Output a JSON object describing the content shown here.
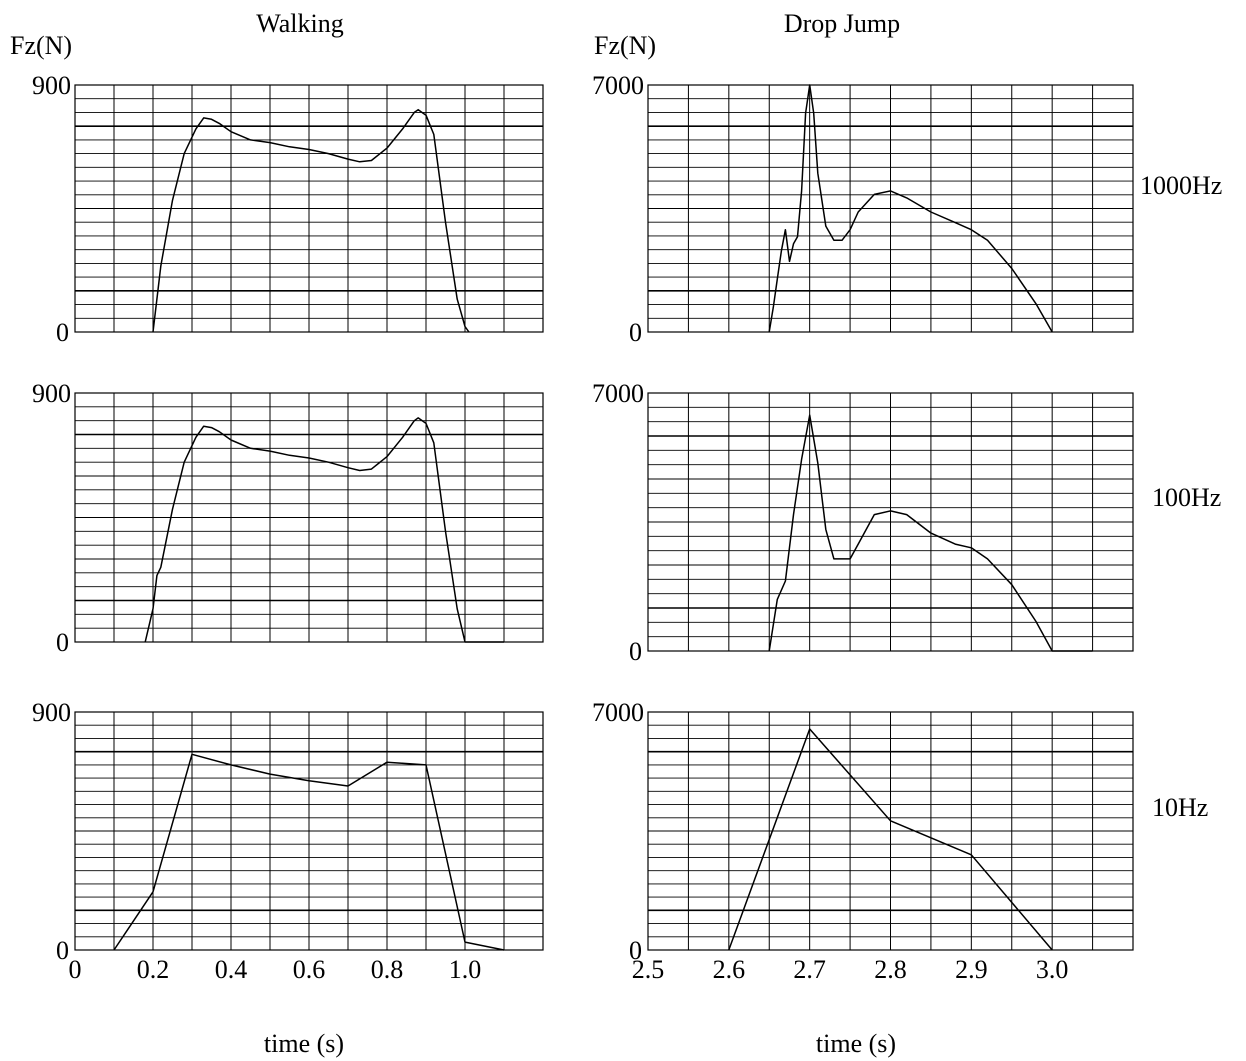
{
  "columns": {
    "walking": {
      "title": "Walking",
      "ylabel": "Fz(N)",
      "xlabel": "time (s)",
      "ylim": [
        0,
        900
      ],
      "xlim": [
        0,
        1.2
      ],
      "xticks": [
        "0",
        "0.2",
        "0.4",
        "0.6",
        "0.8",
        "1.0"
      ],
      "xtick_values": [
        0,
        0.2,
        0.4,
        0.6,
        0.8,
        1.0
      ]
    },
    "drop_jump": {
      "title": "Drop Jump",
      "ylabel": "Fz(N)",
      "xlabel": "time (s)",
      "ylim": [
        0,
        7000
      ],
      "xlim": [
        2.5,
        3.1
      ],
      "xticks": [
        "2.5",
        "2.6",
        "2.7",
        "2.8",
        "2.9",
        "3.0"
      ],
      "xtick_values": [
        2.5,
        2.6,
        2.7,
        2.8,
        2.9,
        3.0
      ]
    }
  },
  "row_labels": [
    "1000Hz",
    "100Hz",
    "10Hz"
  ],
  "chart_data": [
    {
      "type": "line",
      "column": "walking",
      "row_label": "1000Hz",
      "ylim": [
        0,
        900
      ],
      "xlim": [
        0,
        1.2
      ],
      "ytick_labels": [
        "900",
        "0"
      ],
      "grid": true,
      "series": [
        {
          "x": [
            0.2,
            0.21,
            0.22,
            0.25,
            0.28,
            0.31,
            0.33,
            0.35,
            0.37,
            0.4,
            0.45,
            0.5,
            0.55,
            0.6,
            0.65,
            0.7,
            0.73,
            0.76,
            0.8,
            0.84,
            0.87,
            0.88,
            0.9,
            0.92,
            0.95,
            0.98,
            1.0,
            1.01
          ],
          "y": [
            0,
            120,
            240,
            480,
            650,
            740,
            780,
            775,
            760,
            730,
            700,
            690,
            675,
            665,
            650,
            630,
            620,
            625,
            670,
            740,
            800,
            810,
            790,
            720,
            400,
            120,
            20,
            0
          ]
        }
      ]
    },
    {
      "type": "line",
      "column": "drop_jump",
      "row_label": "1000Hz",
      "ylim": [
        0,
        7000
      ],
      "xlim": [
        2.5,
        3.1
      ],
      "ytick_labels": [
        "7000",
        "0"
      ],
      "grid": true,
      "series": [
        {
          "x": [
            2.65,
            2.655,
            2.66,
            2.665,
            2.67,
            2.675,
            2.68,
            2.685,
            2.69,
            2.695,
            2.7,
            2.705,
            2.71,
            2.72,
            2.73,
            2.74,
            2.75,
            2.76,
            2.78,
            2.8,
            2.82,
            2.85,
            2.88,
            2.9,
            2.92,
            2.95,
            2.98,
            3.0
          ],
          "y": [
            0,
            700,
            1500,
            2300,
            2900,
            2000,
            2500,
            2700,
            4000,
            6200,
            7000,
            6200,
            4500,
            3000,
            2600,
            2600,
            2900,
            3400,
            3900,
            4000,
            3800,
            3400,
            3100,
            2900,
            2600,
            1800,
            800,
            0
          ]
        }
      ]
    },
    {
      "type": "line",
      "column": "walking",
      "row_label": "100Hz",
      "ylim": [
        0,
        900
      ],
      "xlim": [
        0,
        1.2
      ],
      "ytick_labels": [
        "900",
        "0"
      ],
      "grid": true,
      "series": [
        {
          "x": [
            0.18,
            0.2,
            0.21,
            0.22,
            0.25,
            0.28,
            0.31,
            0.33,
            0.35,
            0.37,
            0.4,
            0.45,
            0.5,
            0.55,
            0.6,
            0.65,
            0.7,
            0.73,
            0.76,
            0.8,
            0.84,
            0.87,
            0.88,
            0.9,
            0.92,
            0.95,
            0.98,
            1.0,
            1.1
          ],
          "y": [
            0,
            120,
            240,
            270,
            480,
            650,
            740,
            780,
            775,
            760,
            730,
            700,
            690,
            675,
            665,
            650,
            630,
            620,
            625,
            670,
            740,
            800,
            810,
            790,
            720,
            400,
            120,
            0,
            0
          ]
        }
      ]
    },
    {
      "type": "line",
      "column": "drop_jump",
      "row_label": "100Hz",
      "ylim": [
        0,
        7000
      ],
      "xlim": [
        2.5,
        3.1
      ],
      "ytick_labels": [
        "7000",
        "0"
      ],
      "grid": true,
      "series": [
        {
          "x": [
            2.65,
            2.66,
            2.67,
            2.68,
            2.69,
            2.7,
            2.71,
            2.72,
            2.73,
            2.74,
            2.75,
            2.76,
            2.78,
            2.8,
            2.82,
            2.85,
            2.88,
            2.9,
            2.92,
            2.95,
            2.98,
            3.0,
            3.05
          ],
          "y": [
            0,
            1400,
            1900,
            3700,
            5200,
            6400,
            5100,
            3300,
            2500,
            2500,
            2500,
            2900,
            3700,
            3800,
            3700,
            3200,
            2900,
            2800,
            2500,
            1800,
            800,
            0,
            0
          ]
        }
      ]
    },
    {
      "type": "line",
      "column": "walking",
      "row_label": "10Hz",
      "ylim": [
        0,
        900
      ],
      "xlim": [
        0,
        1.2
      ],
      "ytick_labels": [
        "900",
        "0"
      ],
      "grid": true,
      "series": [
        {
          "x": [
            0.1,
            0.2,
            0.3,
            0.4,
            0.5,
            0.6,
            0.7,
            0.8,
            0.9,
            1.0,
            1.1
          ],
          "y": [
            0,
            220,
            740,
            700,
            665,
            640,
            620,
            710,
            700,
            30,
            0
          ]
        }
      ]
    },
    {
      "type": "line",
      "column": "drop_jump",
      "row_label": "10Hz",
      "ylim": [
        0,
        7000
      ],
      "xlim": [
        2.5,
        3.1
      ],
      "ytick_labels": [
        "7000",
        "0"
      ],
      "grid": true,
      "series": [
        {
          "x": [
            2.6,
            2.7,
            2.8,
            2.9,
            3.0
          ],
          "y": [
            0,
            6500,
            3800,
            2800,
            0
          ]
        }
      ]
    }
  ]
}
